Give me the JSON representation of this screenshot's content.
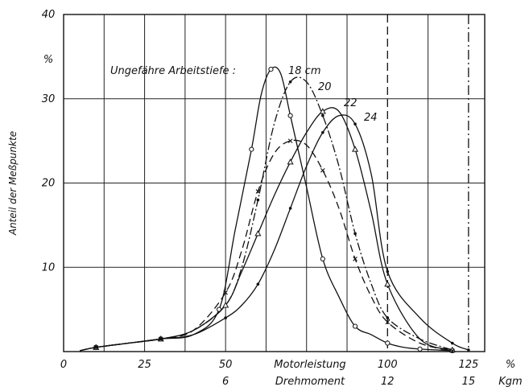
{
  "chart_data": {
    "type": "line",
    "title": "",
    "xlabel": "Motorleistung",
    "xlabel2": "Drehmoment",
    "ylabel": "Anteil der Meßpunkte",
    "xlim": [
      0,
      130
    ],
    "ylim": [
      0,
      40
    ],
    "grid": true,
    "x_ticks": [
      {
        "x": 0,
        "label": "0"
      },
      {
        "x": 25,
        "label": "25"
      },
      {
        "x": 50,
        "label": "50"
      },
      {
        "x": 100,
        "label": "100"
      },
      {
        "x": 125,
        "label": "125"
      }
    ],
    "x_unit": "%",
    "x2_ticks": [
      {
        "x": 50,
        "label": "6"
      },
      {
        "x": 100,
        "label": "12"
      },
      {
        "x": 125,
        "label": "15"
      }
    ],
    "x2_unit": "Kgm",
    "y_ticks": [
      {
        "y": 10,
        "label": "10"
      },
      {
        "y": 20,
        "label": "20"
      },
      {
        "y": 30,
        "label": "30"
      },
      {
        "y": 40,
        "label": "40"
      }
    ],
    "y_unit": "%",
    "vertical_lines": [
      {
        "x": 100,
        "style": "dashed"
      },
      {
        "x": 125,
        "style": "dashdot"
      }
    ],
    "annotation": "Ungefähre Arbeitstiefe :",
    "series": [
      {
        "name": "18 cm",
        "style": "solid",
        "marker": "circle",
        "x": [
          5,
          10,
          20,
          30,
          40,
          48,
          53,
          58,
          61,
          64,
          67,
          70,
          75,
          80,
          85,
          90,
          95,
          100,
          105,
          110,
          115,
          120
        ],
        "y": [
          0.1,
          0.5,
          1,
          1.5,
          2,
          5,
          14.5,
          24,
          30.5,
          33.5,
          33,
          28,
          19.5,
          11,
          6.5,
          3,
          2,
          1,
          0.5,
          0.3,
          0.2,
          0.1
        ]
      },
      {
        "name": "20",
        "style": "dashdot",
        "marker": "dot",
        "x": [
          5,
          10,
          20,
          30,
          40,
          50,
          55,
          60,
          65,
          70,
          75,
          80,
          85,
          90,
          95,
          100,
          110,
          120
        ],
        "y": [
          0.1,
          0.5,
          1,
          1.5,
          2.5,
          5.5,
          10,
          18,
          27,
          32,
          32,
          28,
          22,
          14,
          8,
          4,
          1.5,
          0.2
        ]
      },
      {
        "name": "22",
        "style": "solid",
        "marker": "triangle",
        "x": [
          5,
          10,
          20,
          30,
          40,
          50,
          55,
          60,
          65,
          70,
          75,
          80,
          85,
          90,
          95,
          100,
          110,
          120
        ],
        "y": [
          0.1,
          0.5,
          1,
          1.5,
          2.5,
          5.5,
          9.5,
          14,
          18.5,
          22.5,
          26,
          28.5,
          28.5,
          24,
          16.5,
          8,
          1.5,
          0.2
        ]
      },
      {
        "name": "",
        "style": "dashed",
        "marker": "cross",
        "x": [
          5,
          10,
          20,
          30,
          40,
          50,
          55,
          60,
          65,
          70,
          75,
          80,
          85,
          90,
          95,
          100,
          110,
          120
        ],
        "y": [
          0.1,
          0.5,
          1,
          1.5,
          2.5,
          7,
          12,
          19,
          23.5,
          25,
          24.5,
          21.5,
          17,
          11,
          6.5,
          3.5,
          1,
          0.1
        ]
      },
      {
        "name": "24",
        "style": "solid",
        "marker": "dot",
        "x": [
          5,
          10,
          20,
          30,
          40,
          50,
          55,
          60,
          65,
          70,
          75,
          80,
          85,
          90,
          95,
          100,
          110,
          120,
          125
        ],
        "y": [
          0.1,
          0.5,
          1,
          1.5,
          2,
          4,
          5.5,
          8,
          12,
          17,
          22,
          26,
          28,
          27,
          21,
          9.5,
          4,
          1,
          0.2
        ]
      }
    ]
  }
}
